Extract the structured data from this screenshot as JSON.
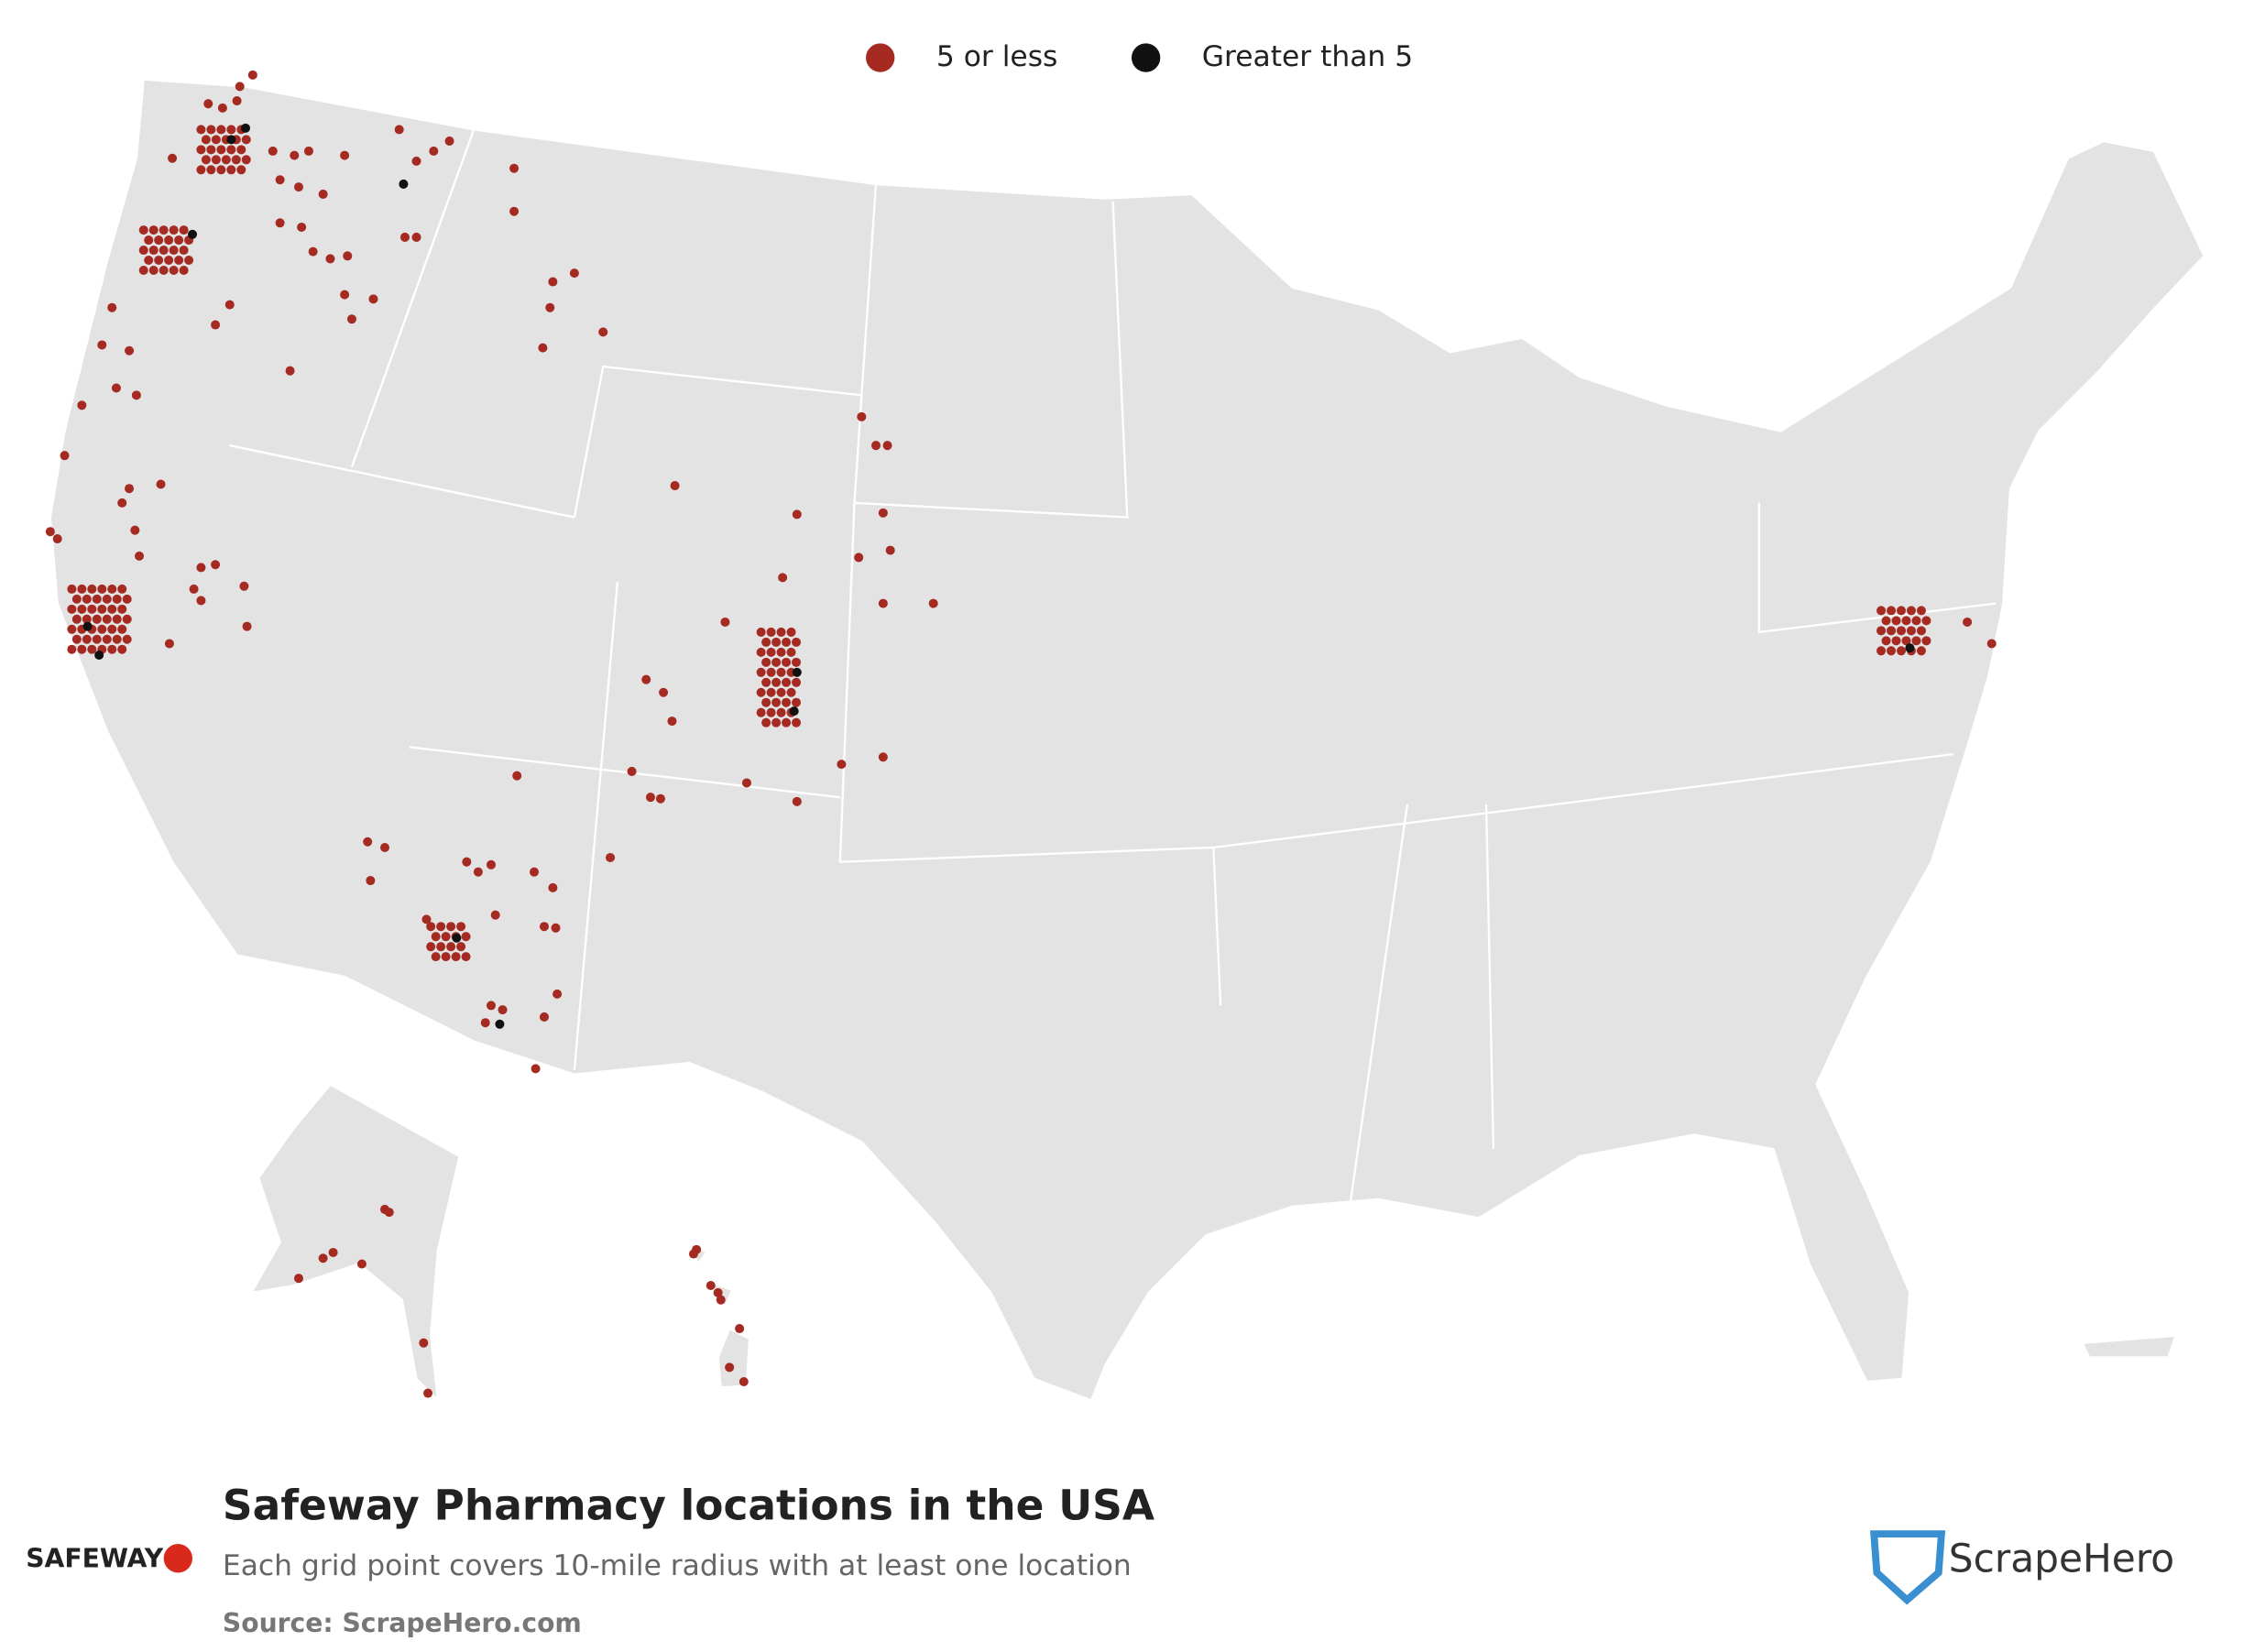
{
  "legend": [
    {
      "label": "5 or less",
      "color": "#a52a22"
    },
    {
      "label": "Greater than 5",
      "color": "#111111"
    }
  ],
  "title": "Safeway Pharmacy locations in the USA",
  "subtitle": "Each grid point covers 10-mile radius with at least one location",
  "source": "Source: ScrapeHero.com",
  "logos": {
    "safeway": "SAFEWAY",
    "scrapehero": "ScrapeHero"
  }
}
